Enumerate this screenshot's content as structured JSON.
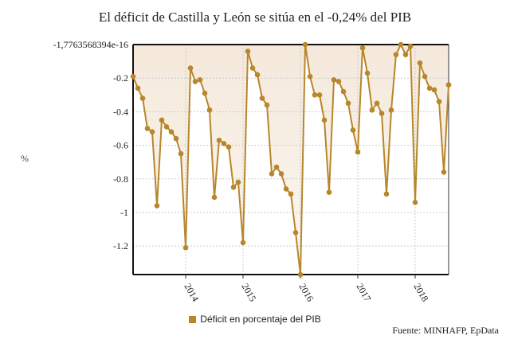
{
  "chart_data": {
    "type": "line",
    "title": "El déficit de Castilla y León se sitúa en el -0,24% del PIB",
    "ylabel": "%",
    "xlabel": "",
    "series": [
      {
        "name": "Déficit en porcentaje del PIB",
        "x_start": "2013-01",
        "x_interval": "month",
        "values": [
          -0.19,
          -0.26,
          -0.32,
          -0.5,
          -0.52,
          -0.96,
          -0.45,
          -0.49,
          -0.52,
          -0.56,
          -0.65,
          -1.21,
          -0.14,
          -0.22,
          -0.21,
          -0.29,
          -0.39,
          -0.91,
          -0.57,
          -0.59,
          -0.61,
          -0.85,
          -0.82,
          -1.18,
          -0.04,
          -0.14,
          -0.18,
          -0.32,
          -0.36,
          -0.77,
          -0.73,
          -0.77,
          -0.86,
          -0.89,
          -1.12,
          -1.37,
          0.0,
          -0.19,
          -0.3,
          -0.3,
          -0.45,
          -0.88,
          -0.21,
          -0.22,
          -0.28,
          -0.35,
          -0.51,
          -0.64,
          -0.02,
          -0.17,
          -0.39,
          -0.35,
          -0.41,
          -0.89,
          -0.39,
          -0.06,
          0.0,
          -0.06,
          -0.01,
          -0.94,
          -0.11,
          -0.19,
          -0.26,
          -0.27,
          -0.34,
          -0.76,
          -0.24
        ]
      }
    ],
    "y_ticks": [
      "-1,7763568394e-16",
      "-0.2",
      "-0.4",
      "-0.6",
      "-0.8",
      "-1",
      "-1.2"
    ],
    "y_tick_values": [
      0,
      -0.2,
      -0.4,
      -0.6,
      -0.8,
      -1,
      -1.2
    ],
    "x_ticks": [
      "2014",
      "2015",
      "2016",
      "2017",
      "2018"
    ],
    "ylim": [
      -1.37,
      0
    ],
    "grid": true,
    "legend_position": "bottom",
    "colors": {
      "line": "#b8862b",
      "fill": "#f3e6d6"
    }
  },
  "source": "Fuente: MINHAFP, EpData"
}
